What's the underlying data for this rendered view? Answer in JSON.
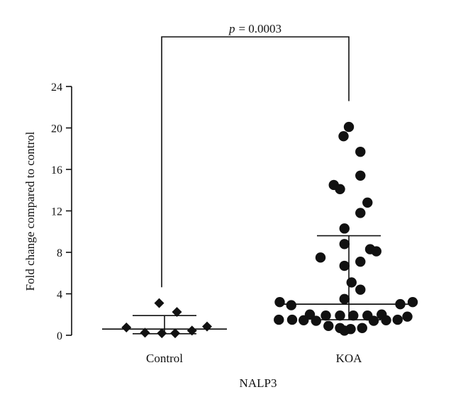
{
  "chart_data": {
    "type": "scatter",
    "title": "",
    "xlabel": "NALP3",
    "ylabel": "Fold change compared to control",
    "ylim": [
      0,
      24
    ],
    "yticks": [
      0,
      4,
      8,
      12,
      16,
      20,
      24
    ],
    "categories": [
      "Control",
      "KOA"
    ],
    "annotation": {
      "p_label": "p",
      "p_value_text": "= 0.0003"
    },
    "series": [
      {
        "category": "Control",
        "marker": "diamond",
        "mean": 0.6,
        "sd_upper": 1.9,
        "sd_lower": 0.15,
        "points": [
          {
            "offset": -0.43,
            "y": 0.75
          },
          {
            "offset": -0.22,
            "y": 0.25
          },
          {
            "offset": -0.03,
            "y": 0.2
          },
          {
            "offset": -0.06,
            "y": 3.1
          },
          {
            "offset": 0.12,
            "y": 0.2
          },
          {
            "offset": 0.14,
            "y": 2.25
          },
          {
            "offset": 0.31,
            "y": 0.45
          },
          {
            "offset": 0.48,
            "y": 0.85
          }
        ]
      },
      {
        "category": "KOA",
        "marker": "circle",
        "mean": 3.0,
        "sd_upper": 9.6,
        "sd_lower": 1.5,
        "points": [
          {
            "offset": 0.0,
            "y": 20.1
          },
          {
            "offset": -0.06,
            "y": 19.2
          },
          {
            "offset": 0.13,
            "y": 17.7
          },
          {
            "offset": 0.13,
            "y": 15.4
          },
          {
            "offset": -0.17,
            "y": 14.5
          },
          {
            "offset": -0.1,
            "y": 14.1
          },
          {
            "offset": 0.21,
            "y": 12.8
          },
          {
            "offset": 0.13,
            "y": 11.8
          },
          {
            "offset": -0.05,
            "y": 10.3
          },
          {
            "offset": -0.05,
            "y": 8.8
          },
          {
            "offset": 0.24,
            "y": 8.3
          },
          {
            "offset": 0.31,
            "y": 8.1
          },
          {
            "offset": -0.32,
            "y": 7.5
          },
          {
            "offset": 0.13,
            "y": 7.1
          },
          {
            "offset": -0.05,
            "y": 6.7
          },
          {
            "offset": 0.03,
            "y": 5.1
          },
          {
            "offset": 0.13,
            "y": 4.4
          },
          {
            "offset": -0.05,
            "y": 3.5
          },
          {
            "offset": -0.78,
            "y": 3.2
          },
          {
            "offset": -0.65,
            "y": 2.9
          },
          {
            "offset": 0.58,
            "y": 3.0
          },
          {
            "offset": 0.72,
            "y": 3.2
          },
          {
            "offset": -0.44,
            "y": 2.0
          },
          {
            "offset": -0.26,
            "y": 1.9
          },
          {
            "offset": -0.1,
            "y": 1.9
          },
          {
            "offset": 0.05,
            "y": 1.9
          },
          {
            "offset": 0.21,
            "y": 1.9
          },
          {
            "offset": 0.37,
            "y": 2.0
          },
          {
            "offset": 0.66,
            "y": 1.8
          },
          {
            "offset": -0.79,
            "y": 1.5
          },
          {
            "offset": -0.64,
            "y": 1.5
          },
          {
            "offset": -0.51,
            "y": 1.45
          },
          {
            "offset": -0.37,
            "y": 1.4
          },
          {
            "offset": 0.28,
            "y": 1.4
          },
          {
            "offset": 0.42,
            "y": 1.45
          },
          {
            "offset": 0.55,
            "y": 1.5
          },
          {
            "offset": -0.23,
            "y": 0.9
          },
          {
            "offset": -0.1,
            "y": 0.7
          },
          {
            "offset": 0.02,
            "y": 0.6
          },
          {
            "offset": 0.15,
            "y": 0.7
          },
          {
            "offset": -0.05,
            "y": 0.45
          }
        ]
      }
    ]
  }
}
